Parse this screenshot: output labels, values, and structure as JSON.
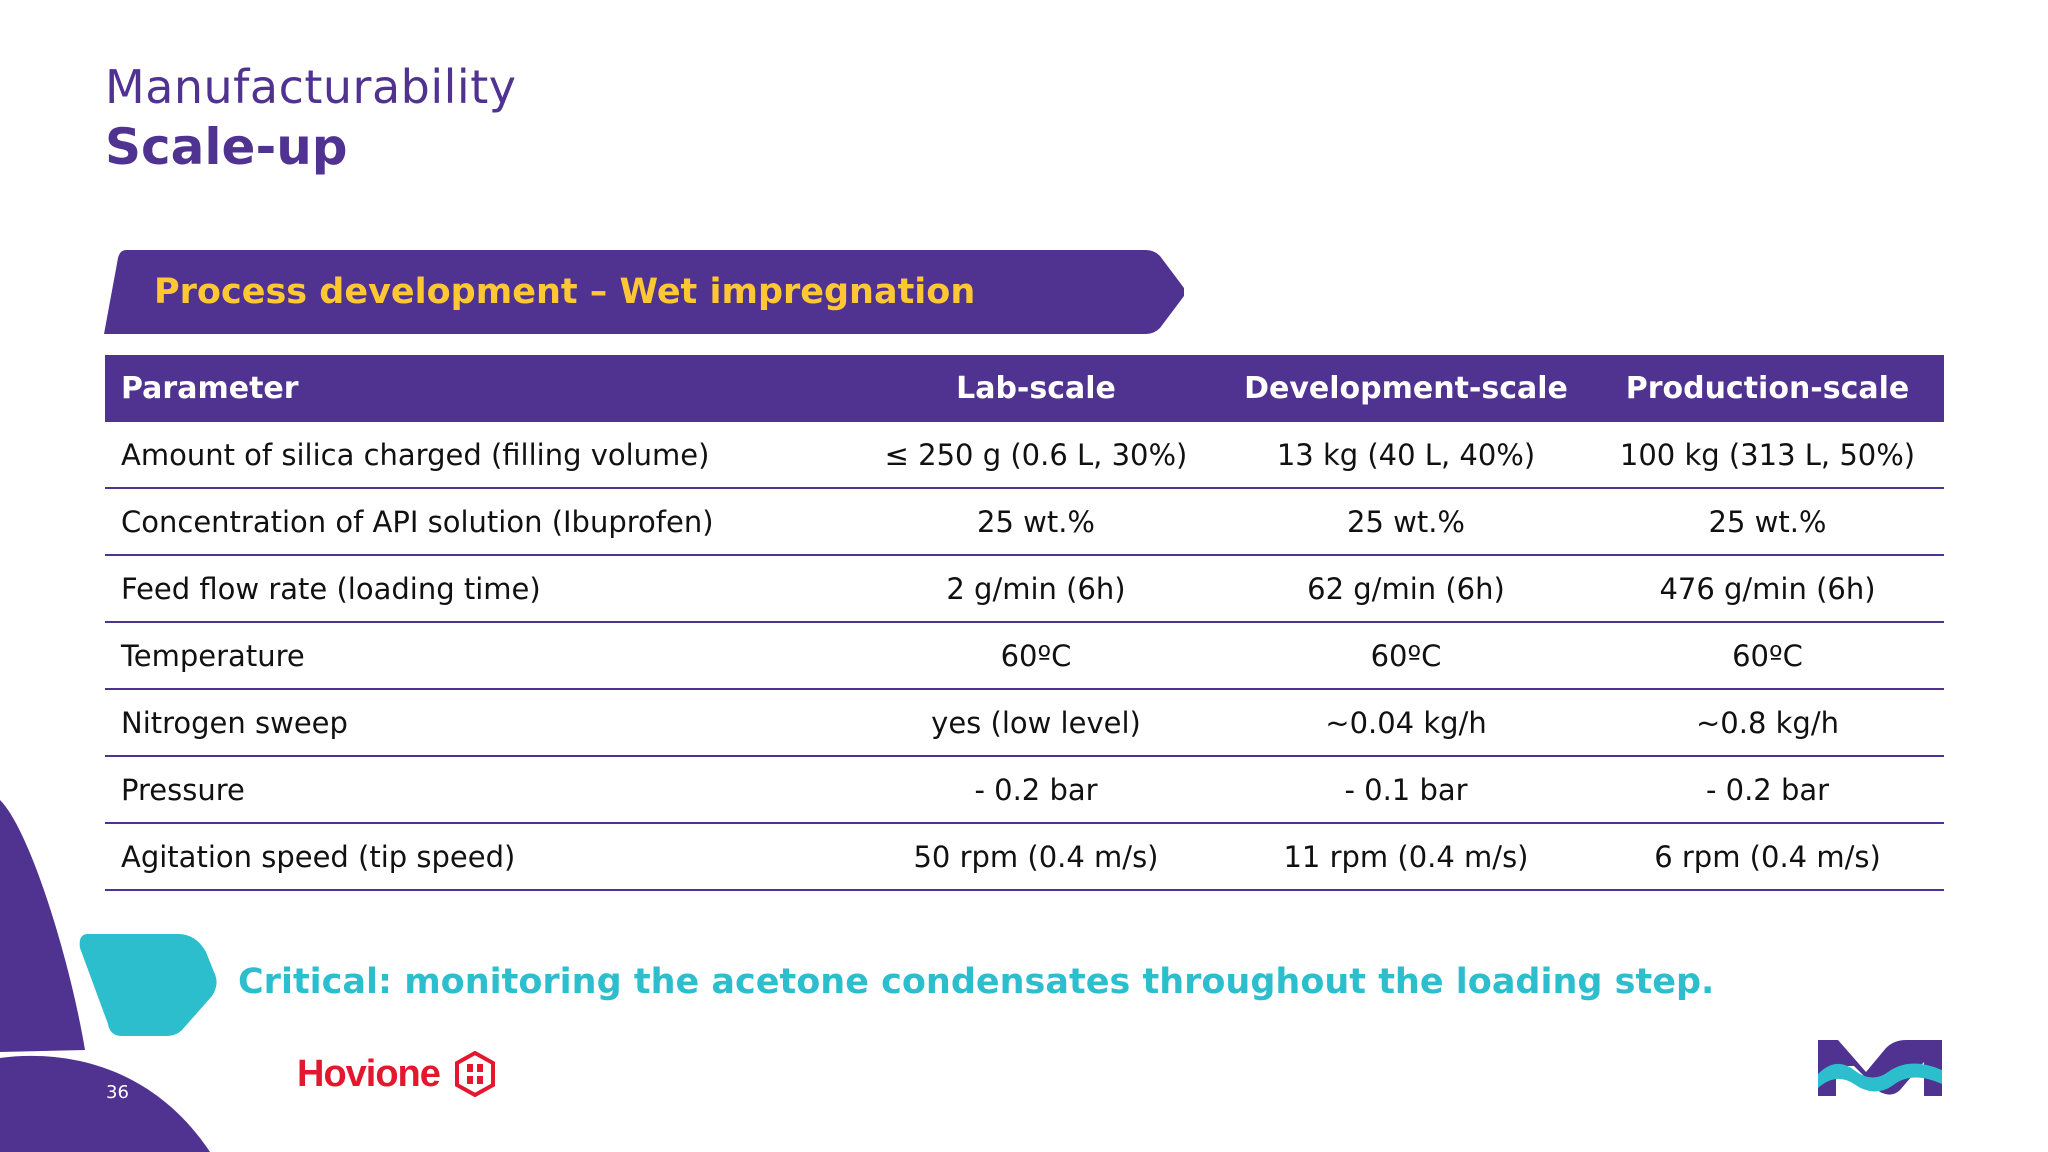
{
  "header": {
    "title_line1": "Manufacturability",
    "title_line2": "Scale-up"
  },
  "banner": {
    "text": "Process development – Wet impregnation"
  },
  "table": {
    "headers": [
      "Parameter",
      "Lab-scale",
      "Development-scale",
      "Production-scale"
    ],
    "rows": [
      [
        "Amount of silica charged (filling volume)",
        "≤ 250 g (0.6 L, 30%)",
        "13 kg (40 L, 40%)",
        "100 kg (313 L, 50%)"
      ],
      [
        "Concentration of API solution (Ibuprofen)",
        "25 wt.%",
        "25 wt.%",
        "25 wt.%"
      ],
      [
        "Feed flow rate (loading time)",
        "2 g/min (6h)",
        "62 g/min (6h)",
        "476 g/min (6h)"
      ],
      [
        "Temperature",
        "60ºC",
        "60ºC",
        "60ºC"
      ],
      [
        "Nitrogen sweep",
        "yes (low level)",
        "~0.04 kg/h",
        "~0.8 kg/h"
      ],
      [
        "Pressure",
        "- 0.2 bar",
        "- 0.1 bar",
        "- 0.2 bar"
      ],
      [
        "Agitation speed (tip speed)",
        "50 rpm (0.4 m/s)",
        "11 rpm (0.4 m/s)",
        "6 rpm (0.4 m/s)"
      ]
    ]
  },
  "critical_note": "Critical: monitoring the acetone condensates throughout the loading step.",
  "footer": {
    "page_number": "36",
    "partner_logo_text": "Hovione"
  },
  "colors": {
    "purple": "#503291",
    "yellow": "#ffc832",
    "cyan": "#2dbecd",
    "red": "#e3172d"
  }
}
